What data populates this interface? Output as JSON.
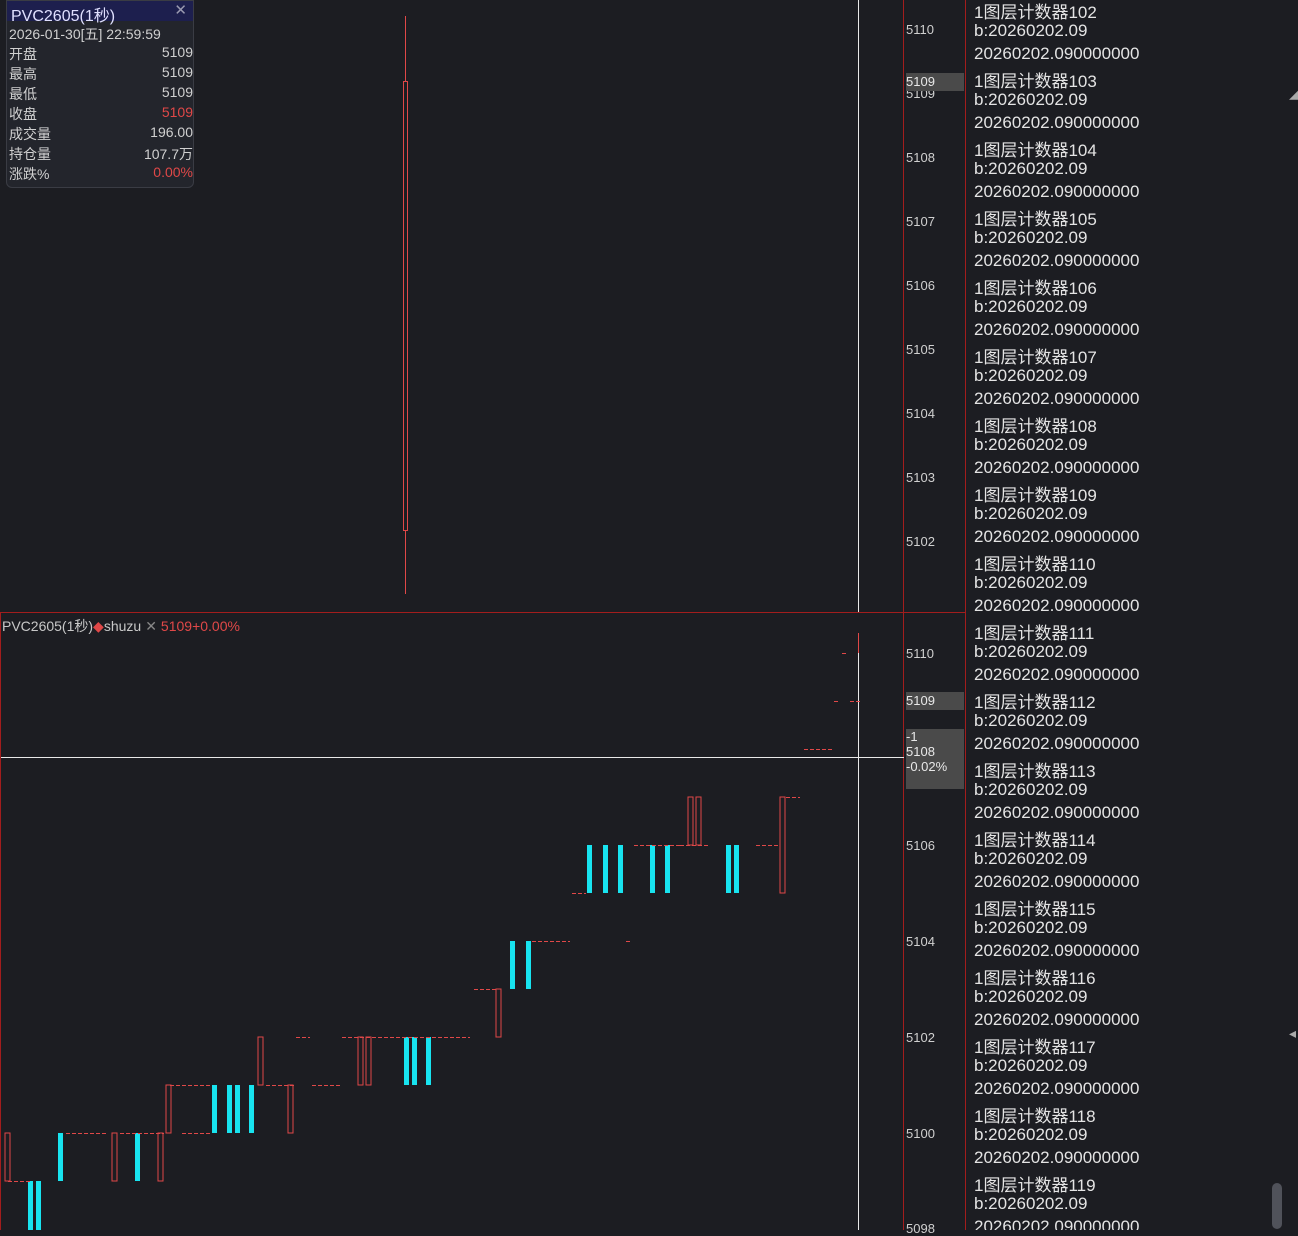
{
  "info_box": {
    "title": "PVC2605(1秒)",
    "datetime": "2026-01-30[五] 22:59:59",
    "rows": [
      {
        "label": "开盘",
        "value": "5109",
        "red": false
      },
      {
        "label": "最高",
        "value": "5109",
        "red": false
      },
      {
        "label": "最低",
        "value": "5109",
        "red": false
      },
      {
        "label": "收盘",
        "value": "5109",
        "red": true
      },
      {
        "label": "成交量",
        "value": "196.00",
        "red": false
      },
      {
        "label": "持仓量",
        "value": "107.7万",
        "red": false
      },
      {
        "label": "涨跌%",
        "value": "0.00%",
        "red": true
      }
    ],
    "close_icon": "close-icon"
  },
  "top_axis": {
    "ticks": [
      "5110",
      "5109",
      "5108",
      "5107",
      "5106",
      "5105",
      "5104",
      "5103",
      "5102"
    ],
    "price_tag": "5109"
  },
  "bottom_header": {
    "symbol": "PVC2605(1秒)",
    "indicator": "shuzu",
    "quote": "5109+0.00%"
  },
  "bottom_axis": {
    "ticks": [
      "5110",
      "5109",
      "5106",
      "5104",
      "5102",
      "5100",
      "5098"
    ],
    "price_tag": "5109",
    "cursor_tag": [
      "-1",
      "5108",
      "-0.02%"
    ]
  },
  "log_lines": [
    "1图层计数器102",
    "b:20260202.09",
    "20260202.090000000",
    "1图层计数器103",
    "b:20260202.09",
    "20260202.090000000",
    "1图层计数器104",
    "b:20260202.09",
    "20260202.090000000",
    "1图层计数器105",
    "b:20260202.09",
    "20260202.090000000",
    "1图层计数器106",
    "b:20260202.09",
    "20260202.090000000",
    "1图层计数器107",
    "b:20260202.09",
    "20260202.090000000",
    "1图层计数器108",
    "b:20260202.09",
    "20260202.090000000",
    "1图层计数器109",
    "b:20260202.09",
    "20260202.090000000",
    "1图层计数器110",
    "b:20260202.09",
    "20260202.090000000",
    "1图层计数器111",
    "b:20260202.09",
    "20260202.090000000",
    "1图层计数器112",
    "b:20260202.09",
    "20260202.090000000",
    "1图层计数器113",
    "b:20260202.09",
    "20260202.090000000",
    "1图层计数器114",
    "b:20260202.09",
    "20260202.090000000",
    "1图层计数器115",
    "b:20260202.09",
    "20260202.090000000",
    "1图层计数器116",
    "b:20260202.09",
    "20260202.090000000",
    "1图层计数器117",
    "b:20260202.09",
    "20260202.090000000",
    "1图层计数器118",
    "b:20260202.09",
    "20260202.090000000",
    "1图层计数器119",
    "b:20260202.09",
    "20260202.090000000"
  ],
  "colors": {
    "up": "#e04848",
    "down": "#18e4f0",
    "grid_border": "#a21d1d",
    "background": "#1c1d22"
  }
}
